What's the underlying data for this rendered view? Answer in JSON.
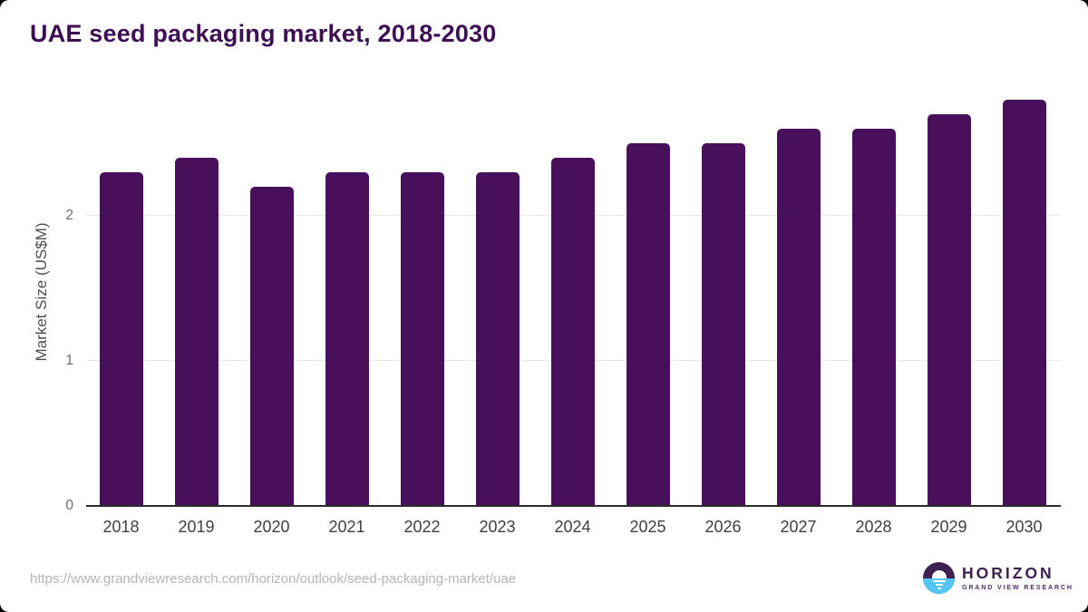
{
  "page": {
    "title": "UAE seed packaging market, 2018-2030",
    "source_url": "https://www.grandviewresearch.com/horizon/outlook/seed-packaging-market/uae"
  },
  "logo": {
    "icon": "horizon-sun-circle-icon",
    "name": "HORIZON",
    "subtitle": "GRAND VIEW RESEARCH",
    "purple": "#3d2153",
    "blue": "#55c6f2"
  },
  "chart_data": {
    "type": "bar",
    "title": "UAE seed packaging market, 2018-2030",
    "categories": [
      "2018",
      "2019",
      "2020",
      "2021",
      "2022",
      "2023",
      "2024",
      "2025",
      "2026",
      "2027",
      "2028",
      "2029",
      "2030"
    ],
    "values": [
      2.3,
      2.4,
      2.2,
      2.3,
      2.3,
      2.3,
      2.4,
      2.5,
      2.5,
      2.6,
      2.6,
      2.7,
      2.8
    ],
    "xlabel": "",
    "ylabel": "Market Size (US$M)",
    "ylim": [
      0,
      2.95
    ],
    "yticks": [
      0,
      1,
      2
    ],
    "grid": true,
    "legend": false,
    "bar_color": "#48105a",
    "grid_color": "#e9e9e9",
    "axis_color": "#2b2b2b"
  }
}
